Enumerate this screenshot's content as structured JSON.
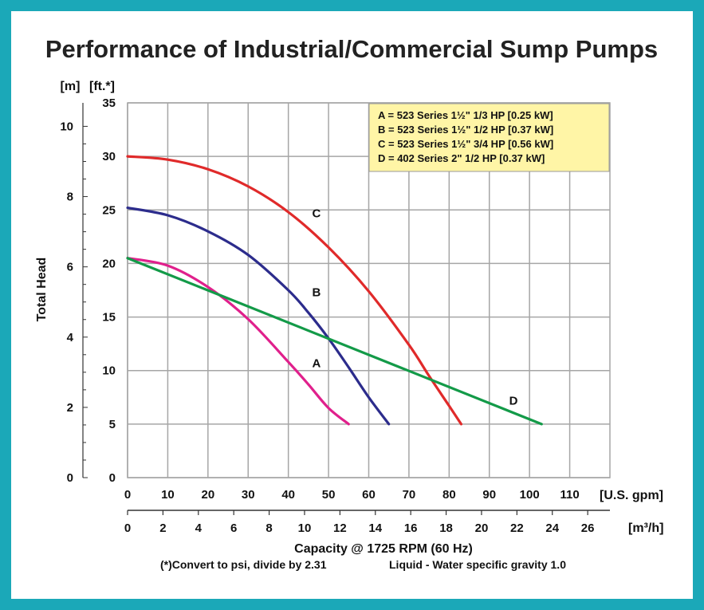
{
  "colors": {
    "frame": "#1ba8b8",
    "grid": "#a6a6a6",
    "legend_bg": "#fff5a6",
    "legend_border": "#999999"
  },
  "chart_data": {
    "type": "line",
    "title": "Performance of Industrial/Commercial Sump Pumps",
    "xlabel": "Capacity @ 1725 RPM (60 Hz)",
    "ylabel": "Total Head",
    "x_unit": "[U.S. gpm]",
    "x2_unit": "[m³/h]",
    "y_unit": "[ft.*]",
    "y2_unit": "[m]",
    "xlim": [
      0,
      120
    ],
    "ylim": [
      0,
      35
    ],
    "x_ticks": [
      0,
      10,
      20,
      30,
      40,
      50,
      60,
      70,
      80,
      90,
      100,
      110
    ],
    "y_ticks": [
      0,
      5,
      10,
      15,
      20,
      25,
      30,
      35
    ],
    "x2_ticks": [
      0,
      2,
      4,
      6,
      8,
      10,
      12,
      14,
      16,
      18,
      20,
      22,
      24,
      26
    ],
    "y2_ticks": [
      0,
      2,
      4,
      6,
      8,
      10
    ],
    "grid": true,
    "legend_position": "top-right",
    "legend": [
      "A = 523 Series 1½\" 1/3 HP [0.25 kW]",
      "B = 523 Series 1½\" 1/2 HP [0.37 kW]",
      "C = 523 Series 1½\" 3/4 HP [0.56 kW]",
      "D = 402 Series 2\" 1/2 HP [0.37 kW]"
    ],
    "series": [
      {
        "name": "A",
        "color": "#e0208c",
        "x": [
          0,
          10,
          20,
          30,
          40,
          45,
          50,
          55
        ],
        "y": [
          20.5,
          19.8,
          17.8,
          14.8,
          10.8,
          8.7,
          6.5,
          5
        ]
      },
      {
        "name": "B",
        "color": "#2c2c8c",
        "x": [
          0,
          10,
          20,
          30,
          40,
          45,
          50,
          55,
          60,
          65
        ],
        "y": [
          25.2,
          24.5,
          23.0,
          20.8,
          17.5,
          15.4,
          13.0,
          10.3,
          7.5,
          5
        ]
      },
      {
        "name": "C",
        "color": "#e02a2a",
        "x": [
          0,
          10,
          20,
          30,
          40,
          50,
          60,
          70,
          75,
          80,
          83
        ],
        "y": [
          30.0,
          29.7,
          28.8,
          27.2,
          24.8,
          21.5,
          17.4,
          12.4,
          9.5,
          6.7,
          5
        ]
      },
      {
        "name": "D",
        "color": "#139a48",
        "x": [
          0,
          103
        ],
        "y": [
          20.5,
          5
        ]
      }
    ],
    "curve_labels": [
      {
        "text": "A",
        "x": 47,
        "y": 10.7
      },
      {
        "text": "B",
        "x": 47,
        "y": 17.3
      },
      {
        "text": "C",
        "x": 47,
        "y": 24.7
      },
      {
        "text": "D",
        "x": 96,
        "y": 7.2
      }
    ],
    "footnote": "(*)Convert to psi, divide by 2.31",
    "liquid_note": "Liquid - Water specific gravity 1.0"
  }
}
